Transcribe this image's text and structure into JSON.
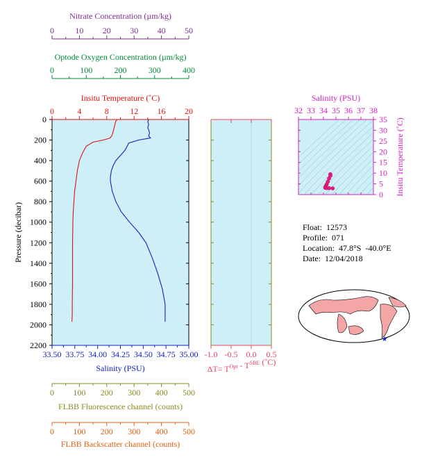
{
  "float_info": {
    "float_label": "Float:",
    "float_value": "12573",
    "profile_label": "Profile:",
    "profile_value": "071",
    "location_label": "Location:",
    "location_value": "47.8°S  -40.0°E",
    "date_label": "Date:",
    "date_value": "12/04/2018"
  },
  "colors": {
    "nitrate": "#7b2d8e",
    "oxygen": "#008a3a",
    "temperature": "#e01010",
    "salinity": "#1020c0",
    "salinity_top": "#d020c0",
    "fluorescence": "#8a8a20",
    "backscatter": "#e06010",
    "delta": "#f04060",
    "panel_bg": "#cdeff7",
    "axis": "#000000",
    "marker_fill": "#f01880",
    "map_land": "#f4a6a6",
    "map_ocean": "#ffffff"
  },
  "chart_data": [
    {
      "type": "line",
      "title": "",
      "ylabel": "Pressure (decibar)",
      "ylim": [
        2200,
        0
      ],
      "yticks": [
        0,
        200,
        400,
        600,
        800,
        1000,
        1200,
        1400,
        1600,
        1800,
        2000,
        2200
      ],
      "top_axes": [
        {
          "label": "Nitrate Concentration (µm/kg)",
          "range": [
            0,
            50
          ],
          "ticks": [
            0,
            10,
            20,
            30,
            40,
            50
          ]
        },
        {
          "label": "Optode Oxygen Concentration (µm/kg)",
          "range": [
            0,
            400
          ],
          "ticks": [
            0,
            100,
            200,
            300,
            400
          ]
        },
        {
          "label": "Insitu Temperature (˚C)",
          "range": [
            0,
            20
          ],
          "ticks": [
            0,
            4,
            8,
            12,
            16,
            20
          ],
          "tick_labels": [
            "0",
            "4",
            "8",
            "12",
            "16",
            "20"
          ]
        }
      ],
      "bottom_axes": [
        {
          "label": "Salinity (PSU)",
          "range": [
            33.5,
            35.0
          ],
          "ticks": [
            33.5,
            33.75,
            34.0,
            34.25,
            34.5,
            34.75,
            35.0
          ],
          "tick_labels": [
            "33.50",
            "33.75",
            "34.00",
            "34.25",
            "34.50",
            "34.75",
            "35.00"
          ]
        },
        {
          "label": "FLBB Fluorescence channel (counts)",
          "range": [
            0,
            500
          ],
          "ticks": [
            0,
            100,
            200,
            300,
            400,
            500
          ]
        },
        {
          "label": "FLBB Backscatter channel (counts)",
          "range": [
            0,
            500
          ],
          "ticks": [
            0,
            100,
            200,
            300,
            400,
            500
          ]
        }
      ],
      "series": [
        {
          "name": "Temperature",
          "axis": "temperature",
          "x": [
            9.5,
            9.3,
            9.2,
            9.0,
            8.8,
            8.5,
            7.5,
            6.0,
            5.0,
            4.5,
            4.0,
            3.7,
            3.5,
            3.3,
            3.2,
            3.1,
            3.05,
            3.0,
            3.0,
            3.0,
            2.95,
            2.95,
            2.9
          ],
          "y": [
            0,
            20,
            50,
            100,
            150,
            180,
            200,
            220,
            260,
            320,
            400,
            500,
            600,
            700,
            800,
            900,
            1000,
            1200,
            1400,
            1600,
            1800,
            1900,
            1970
          ]
        },
        {
          "name": "Salinity",
          "axis": "salinity",
          "x": [
            34.56,
            34.55,
            34.56,
            34.55,
            34.56,
            34.57,
            34.56,
            34.58,
            34.45,
            34.34,
            34.33,
            34.3,
            34.25,
            34.2,
            34.17,
            34.15,
            34.14,
            34.14,
            34.16,
            34.2,
            34.26,
            34.35,
            34.45,
            34.53,
            34.6,
            34.66,
            34.71,
            34.74,
            34.74
          ],
          "y": [
            0,
            20,
            50,
            80,
            100,
            130,
            160,
            180,
            200,
            230,
            250,
            300,
            350,
            400,
            450,
            500,
            560,
            600,
            700,
            800,
            900,
            1000,
            1100,
            1200,
            1350,
            1500,
            1650,
            1800,
            1970
          ]
        }
      ]
    },
    {
      "type": "line",
      "xlabel": "ΔT= T",
      "xlabel_sup1": "Opt",
      "xlabel_mid": " - T",
      "xlabel_sup2": "SBE",
      "xlabel_end": " (˚C)",
      "xlim": [
        -1.0,
        0.5
      ],
      "xticks": [
        -1.0,
        -0.5,
        0.0,
        0.5
      ],
      "xtick_labels": [
        "-1.0",
        "-0.5",
        "0.0",
        "0.5"
      ],
      "ylim": [
        2200,
        0
      ]
    },
    {
      "type": "scatter",
      "xlabel": "Salinity (PSU)",
      "ylabel": "Insitu Temperature (˚C)",
      "xlim": [
        32,
        38
      ],
      "xticks": [
        32,
        33,
        34,
        35,
        36,
        37,
        38
      ],
      "ylim": [
        0,
        35
      ],
      "yticks": [
        0,
        5,
        10,
        15,
        20,
        25,
        30,
        35
      ],
      "x": [
        34.55,
        34.56,
        34.45,
        34.35,
        34.26,
        34.2,
        34.15,
        34.14,
        34.25,
        34.45,
        34.74
      ],
      "y": [
        9.5,
        8.8,
        7.5,
        6.0,
        4.8,
        4.0,
        3.5,
        3.2,
        3.0,
        3.0,
        2.9
      ]
    }
  ]
}
